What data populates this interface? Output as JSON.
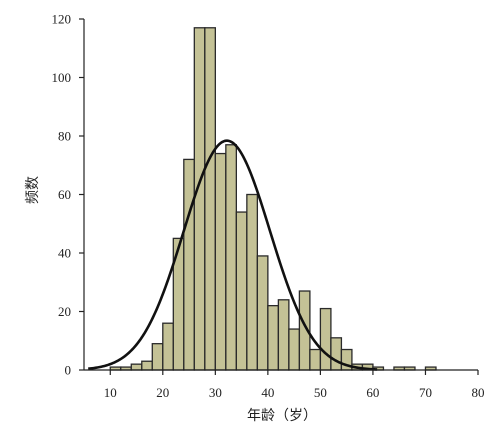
{
  "chart_data": {
    "type": "bar",
    "subtype": "histogram",
    "xlabel": "年龄（岁）",
    "ylabel": "频数",
    "xlim": [
      5,
      80
    ],
    "ylim": [
      0,
      120
    ],
    "x_ticks": [
      10,
      20,
      30,
      40,
      50,
      60,
      70,
      80
    ],
    "y_ticks": [
      0,
      20,
      40,
      60,
      80,
      100,
      120
    ],
    "bin_width": 2,
    "bin_starts": [
      10,
      12,
      14,
      16,
      18,
      20,
      22,
      24,
      26,
      28,
      30,
      32,
      34,
      36,
      38,
      40,
      42,
      44,
      46,
      48,
      50,
      52,
      54,
      56,
      58,
      60,
      62,
      64,
      66,
      68,
      70
    ],
    "values": [
      1,
      1,
      2,
      3,
      9,
      16,
      45,
      72,
      117,
      117,
      74,
      77,
      54,
      60,
      39,
      22,
      24,
      14,
      27,
      7,
      21,
      11,
      7,
      2,
      2,
      1,
      0,
      1,
      1,
      0,
      1
    ],
    "normal_curve": {
      "mean": 32.2,
      "peak": 78.4,
      "sd": 8.2
    },
    "colors": {
      "bar_fill": "#c4c296",
      "bar_stroke": "#2a2a2a",
      "curve": "#111111",
      "axis": "#222222"
    },
    "grid": false,
    "legend": false
  }
}
